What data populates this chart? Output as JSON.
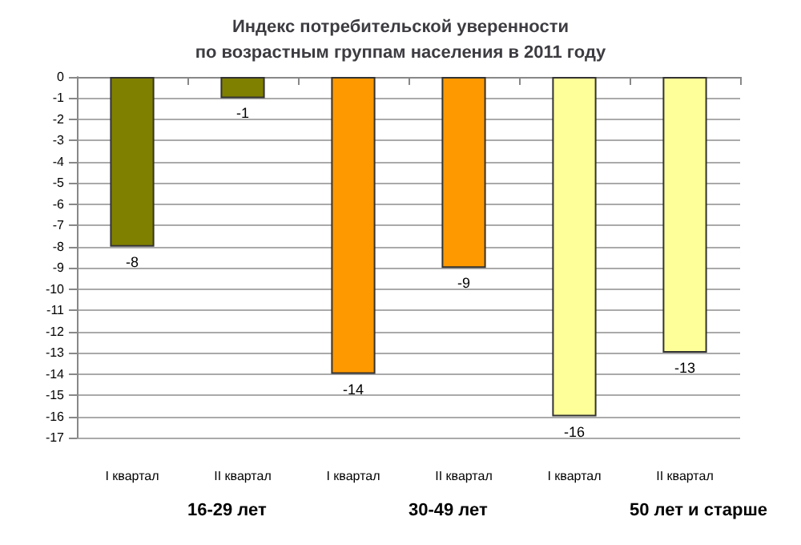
{
  "chart_data": {
    "type": "bar",
    "title": "Индекс потребительской уверенности\nпо возрастным группам населения в 2011 году",
    "categories": [
      "I квартал",
      "II квартал",
      "I квартал",
      "II квартал",
      "I квартал",
      "II квартал"
    ],
    "values": [
      -8,
      -1,
      -14,
      -9,
      -16,
      -13
    ],
    "colors": [
      "#808000",
      "#808000",
      "#ff9900",
      "#ff9900",
      "#ffff99",
      "#ffff99"
    ],
    "ylim": [
      -17,
      0
    ],
    "yticks": [
      0,
      -1,
      -2,
      -3,
      -4,
      -5,
      -6,
      -7,
      -8,
      -9,
      -10,
      -11,
      -12,
      -13,
      -14,
      -15,
      -16,
      -17
    ],
    "grid": "y",
    "data_labels": true,
    "annotations": [
      "16-29 лет",
      "30-49 лет",
      "50 лет и старше"
    ]
  }
}
